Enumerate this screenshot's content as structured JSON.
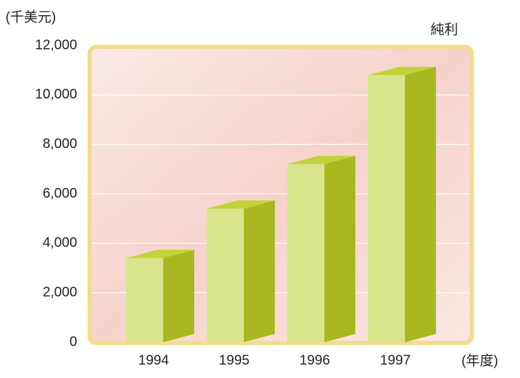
{
  "chart_data": {
    "type": "bar3d",
    "title": "純利",
    "y_label": "(千美元)",
    "x_label": "(年度)",
    "categories": [
      "1994",
      "1995",
      "1996",
      "1997"
    ],
    "values": [
      3400,
      5400,
      7200,
      10800
    ],
    "front_color": "#d8e58c",
    "side_color": "#a9b81e",
    "top_color": "#c2d33a",
    "ylim": [
      0,
      12000
    ],
    "yticks": [
      0,
      {
        "value": 2000,
        "label": "2,000"
      },
      {
        "value": 4000,
        "label": "4,000"
      },
      {
        "value": 6000,
        "label": "6,000"
      },
      {
        "value": 8000,
        "label": "8,000"
      },
      {
        "value": 10000,
        "label": "10,000"
      },
      {
        "value": 12000,
        "label": "12,000"
      }
    ],
    "grid": true
  }
}
